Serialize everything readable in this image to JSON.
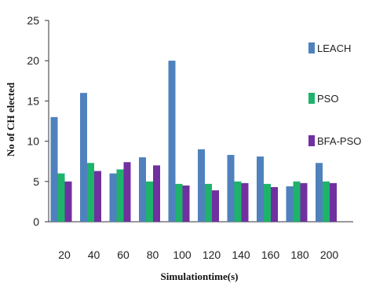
{
  "chart_data": {
    "type": "bar",
    "title": "",
    "xlabel": "Simulationtime(s)",
    "ylabel": "No of CH elected",
    "categories": [
      "20",
      "40",
      "60",
      "80",
      "100",
      "120",
      "140",
      "160",
      "180",
      "200"
    ],
    "series": [
      {
        "name": "LEACH",
        "color": "#4f81bd",
        "values": [
          13,
          16,
          6,
          8,
          20,
          9,
          8.3,
          8.1,
          4.4,
          7.3
        ]
      },
      {
        "name": "PSO",
        "color": "#1db36b",
        "values": [
          6,
          7.3,
          6.5,
          5,
          4.7,
          4.7,
          5,
          4.7,
          5,
          5
        ]
      },
      {
        "name": "BFA-PSO",
        "color": "#7030a0",
        "values": [
          5,
          6.3,
          7.4,
          7,
          4.5,
          3.9,
          4.8,
          4.3,
          4.8,
          4.8
        ]
      }
    ],
    "ylim": [
      0,
      25
    ],
    "yticks": [
      0,
      5,
      10,
      15,
      20,
      25
    ],
    "grid": false,
    "legend_position": "right"
  }
}
